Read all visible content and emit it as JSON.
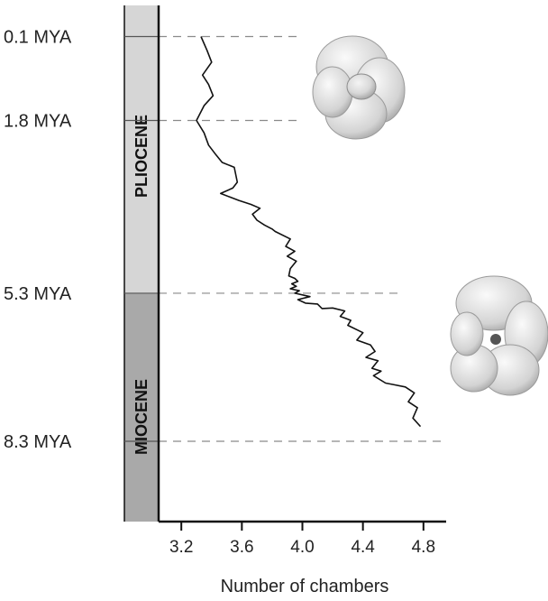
{
  "chart_data": {
    "type": "line",
    "xlabel": "Number of chambers",
    "xlim": [
      3.05,
      4.95
    ],
    "xticks": [
      3.2,
      3.6,
      4.0,
      4.4,
      4.8
    ],
    "xtick_labels": [
      "3.2",
      "3.6",
      "4.0",
      "4.4",
      "4.8"
    ],
    "ylim_mya": [
      8.9,
      0.1
    ],
    "time_markers": [
      {
        "label": "0.1 MYA",
        "mya": 0.1
      },
      {
        "label": "1.8 MYA",
        "mya": 1.8
      },
      {
        "label": "5.3 MYA",
        "mya": 5.3
      },
      {
        "label": "8.3 MYA",
        "mya": 8.3
      }
    ],
    "epochs": [
      {
        "name": "PLIOCENE",
        "from_mya": 0.1,
        "to_mya": 5.3,
        "color": "#d6d6d6"
      },
      {
        "name": "MIOCENE",
        "from_mya": 5.3,
        "to_mya": 8.9,
        "color": "#a9a9a9"
      }
    ],
    "series": [
      {
        "x": [
          3.33,
          3.37,
          3.4,
          3.34,
          3.38,
          3.41,
          3.35,
          3.3,
          3.35,
          3.38,
          3.43,
          3.47,
          3.55,
          3.57,
          3.54,
          3.46,
          3.52,
          3.58,
          3.66,
          3.72,
          3.67,
          3.7,
          3.75,
          3.8,
          3.82,
          3.92,
          3.89,
          3.95,
          3.9,
          3.96,
          3.92,
          3.91,
          3.95,
          3.97,
          3.93,
          3.96,
          3.92,
          3.98,
          3.95,
          4.05,
          3.97,
          4.02,
          4.1,
          4.13,
          4.2,
          4.28,
          4.25,
          4.32,
          4.3,
          4.4,
          4.36,
          4.45,
          4.48,
          4.42,
          4.5,
          4.46,
          4.52,
          4.47,
          4.55,
          4.6,
          4.68,
          4.74,
          4.7,
          4.76,
          4.73,
          4.78
        ],
        "mya": [
          0.1,
          0.38,
          0.62,
          0.88,
          1.07,
          1.3,
          1.5,
          1.8,
          2.05,
          2.3,
          2.5,
          2.65,
          2.75,
          3.05,
          3.17,
          3.28,
          3.35,
          3.42,
          3.5,
          3.58,
          3.7,
          3.82,
          3.92,
          4.0,
          4.05,
          4.2,
          4.35,
          4.45,
          4.55,
          4.65,
          4.8,
          4.95,
          5.0,
          5.06,
          5.11,
          5.16,
          5.21,
          5.25,
          5.3,
          5.37,
          5.43,
          5.5,
          5.52,
          5.61,
          5.6,
          5.66,
          5.77,
          5.85,
          5.95,
          6.1,
          6.25,
          6.35,
          6.48,
          6.6,
          6.67,
          6.82,
          6.88,
          6.97,
          7.12,
          7.15,
          7.2,
          7.32,
          7.5,
          7.62,
          7.83,
          8.0
        ]
      }
    ]
  }
}
